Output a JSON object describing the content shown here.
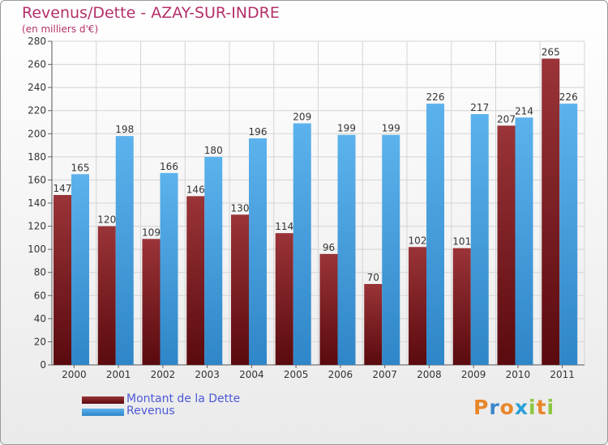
{
  "title": "Revenus/Dette - AZAY-SUR-INDRE",
  "subtitle": "(en milliers d'€)",
  "brand": {
    "text": "Proxiti",
    "letters": [
      {
        "ch": "P",
        "color": "#e8862a"
      },
      {
        "ch": "r",
        "color": "#3a86c8"
      },
      {
        "ch": "o",
        "color": "#e8862a"
      },
      {
        "ch": "x",
        "color": "#2b9fd8"
      },
      {
        "ch": "i",
        "color": "#8cc63f"
      },
      {
        "ch": "t",
        "color": "#e8862a"
      },
      {
        "ch": "i",
        "color": "#8cc63f"
      }
    ]
  },
  "chart_data": {
    "type": "bar",
    "categories": [
      "2000",
      "2001",
      "2002",
      "2003",
      "2004",
      "2005",
      "2006",
      "2007",
      "2008",
      "2009",
      "2010",
      "2011"
    ],
    "series": [
      {
        "name": "Montant de la Dette",
        "color": "#7a1a1e",
        "values": [
          147,
          120,
          109,
          146,
          130,
          114,
          96,
          70,
          102,
          101,
          207,
          265
        ]
      },
      {
        "name": "Revenus",
        "color": "#4da3e0",
        "values": [
          165,
          198,
          166,
          180,
          196,
          209,
          199,
          199,
          226,
          217,
          214,
          226
        ]
      }
    ],
    "ylim": [
      0,
      280
    ],
    "yticks": [
      0,
      20,
      40,
      60,
      80,
      100,
      120,
      140,
      160,
      180,
      200,
      220,
      240,
      260,
      280
    ],
    "grid": true,
    "legend_position": "bottom-left"
  }
}
